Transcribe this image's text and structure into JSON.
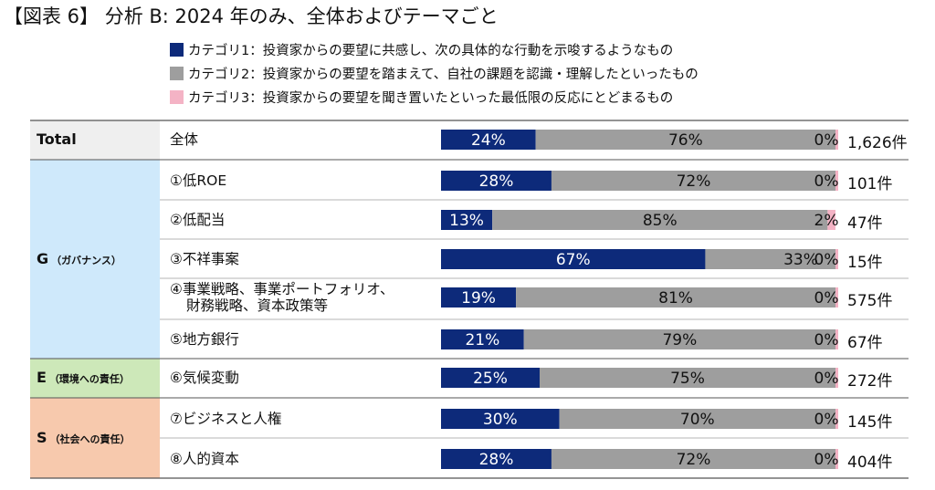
{
  "title": "【図表 6】 分析 B:  2024 年のみ、全体およびテーマごと",
  "legend": [
    {
      "label": "カテゴリ1：投資家からの要望に共感し、次の具体的な行動を示唆するようなもの",
      "color": "#0d2a7a"
    },
    {
      "label": "カテゴリ2：投資家からの要望を踏まえて、自社の課題を認識・理解したといったもの",
      "color": "#9e9e9e"
    },
    {
      "label": "カテゴリ3：投資家からの要望を聞き置いたといった最低限の反応にとどまるもの",
      "color": "#f4b3c5"
    }
  ],
  "groups": [
    {
      "label": "Total",
      "sub": "",
      "color": "#efefef"
    },
    {
      "label": "G",
      "sub": "（ガバナンス）",
      "color": "#cfe9fb"
    },
    {
      "label": "E",
      "sub": "（環境への責任）",
      "color": "#cde8b9"
    },
    {
      "label": "S",
      "sub": "（社会への責任）",
      "color": "#f7c9ad"
    }
  ],
  "chart_data": {
    "type": "bar",
    "stacked": true,
    "orientation": "horizontal",
    "title": "【図表 6】 分析 B:  2024 年のみ、全体およびテーマごと",
    "categories": [
      "全体",
      "①低ROE",
      "②低配当",
      "③不祥事案",
      "④事業戦略、事業ポートフォリオ、財務戦略、資本政策等",
      "⑤地方銀行",
      "⑥気候変動",
      "⑦ビジネスと人権",
      "⑧人的資本"
    ],
    "category_lines": [
      [
        "全体"
      ],
      [
        "①低ROE"
      ],
      [
        "②低配当"
      ],
      [
        "③不祥事案"
      ],
      [
        "④事業戦略、事業ポートフォリオ、",
        "財務戦略、資本政策等"
      ],
      [
        "⑤地方銀行"
      ],
      [
        "⑥気候変動"
      ],
      [
        "⑦ビジネスと人権"
      ],
      [
        "⑧人的資本"
      ]
    ],
    "series": [
      {
        "name": "カテゴリ1",
        "values": [
          24,
          28,
          13,
          67,
          19,
          21,
          25,
          30,
          28
        ],
        "labels": [
          "24%",
          "28%",
          "13%",
          "67%",
          "19%",
          "21%",
          "25%",
          "30%",
          "28%"
        ]
      },
      {
        "name": "カテゴリ2",
        "values": [
          76,
          72,
          85,
          33,
          81,
          79,
          75,
          70,
          72
        ],
        "labels": [
          "76%",
          "72%",
          "85%",
          "33%",
          "81%",
          "79%",
          "75%",
          "70%",
          "72%"
        ]
      },
      {
        "name": "カテゴリ3",
        "values": [
          0,
          0,
          2,
          0,
          0,
          0,
          0,
          0,
          0
        ],
        "labels": [
          "0%",
          "0%",
          "2%",
          "0%",
          "0%",
          "0%",
          "0%",
          "0%",
          "0%"
        ]
      }
    ],
    "counts": [
      "1,626件",
      "101件",
      "47件",
      "15件",
      "575件",
      "67件",
      "272件",
      "145件",
      "404件"
    ],
    "xlim": [
      0,
      100
    ],
    "legend": "top"
  }
}
